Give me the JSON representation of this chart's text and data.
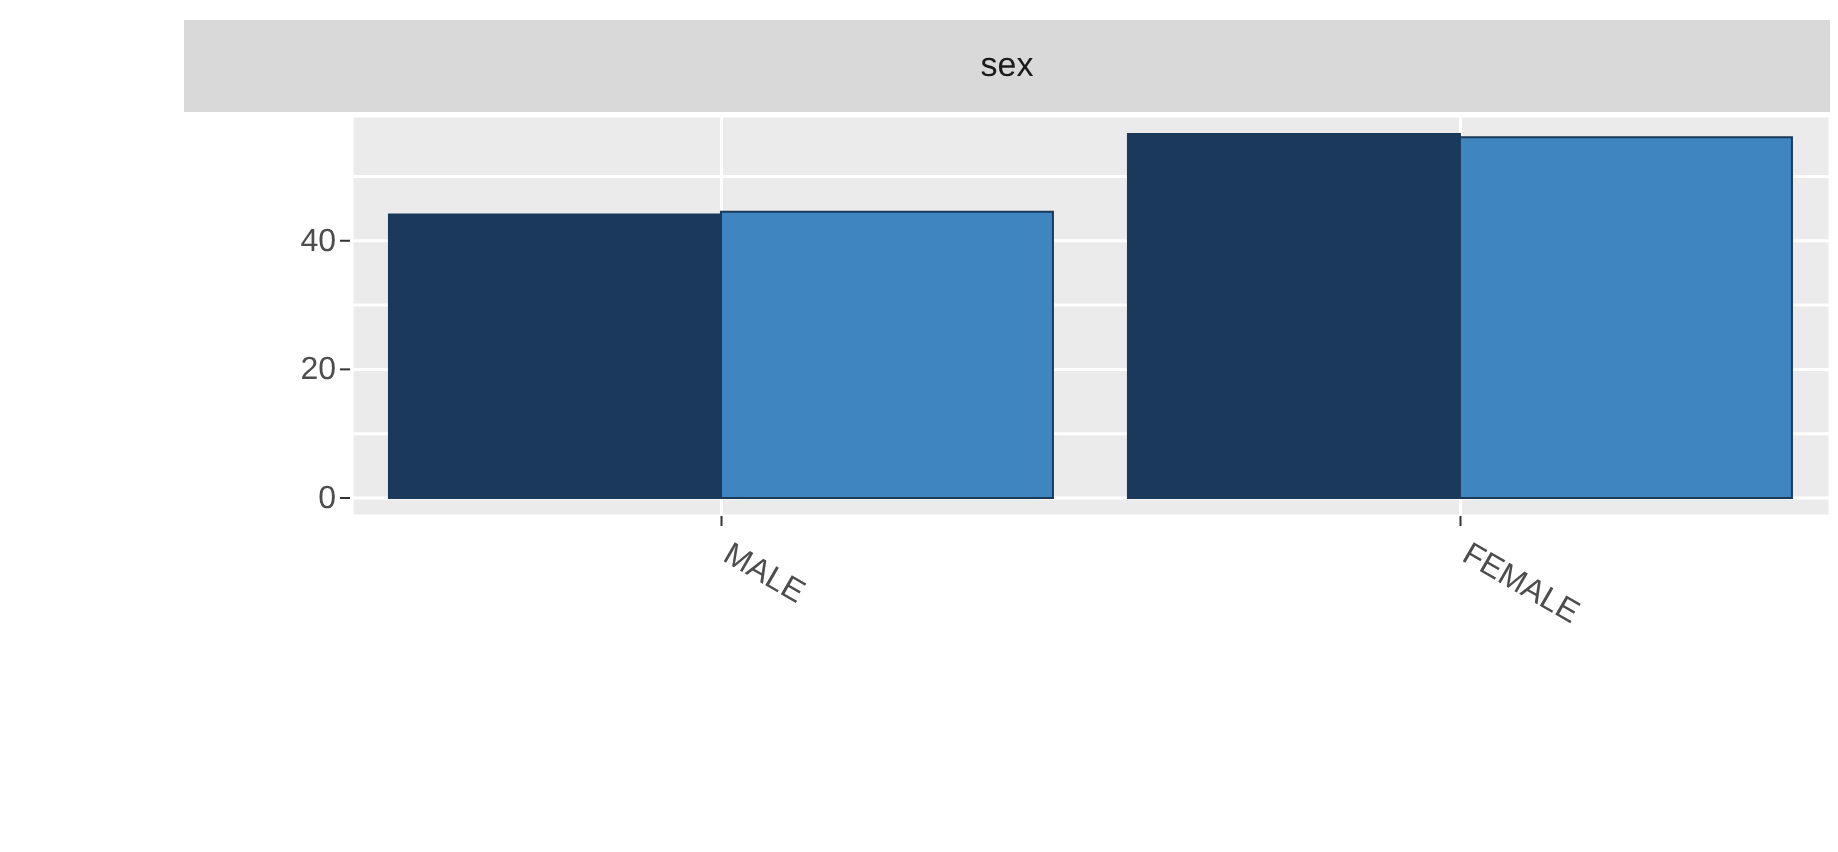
{
  "chart_data": {
    "type": "bar",
    "title": "sex",
    "categories": [
      "MALE",
      "FEMALE"
    ],
    "series": [
      {
        "color": "#1b3a5b",
        "values": [
          44.1,
          56.6
        ]
      },
      {
        "color": "#3f86c1",
        "values": [
          44.5,
          56.1
        ]
      }
    ],
    "ylim": [
      -2.8,
      59.4
    ],
    "yticks": [
      0,
      {
        "value": 10,
        "label": null
      },
      20,
      {
        "value": 30,
        "label": null
      },
      40,
      {
        "value": 50,
        "label": null
      }
    ],
    "grid": true,
    "legend": false
  }
}
